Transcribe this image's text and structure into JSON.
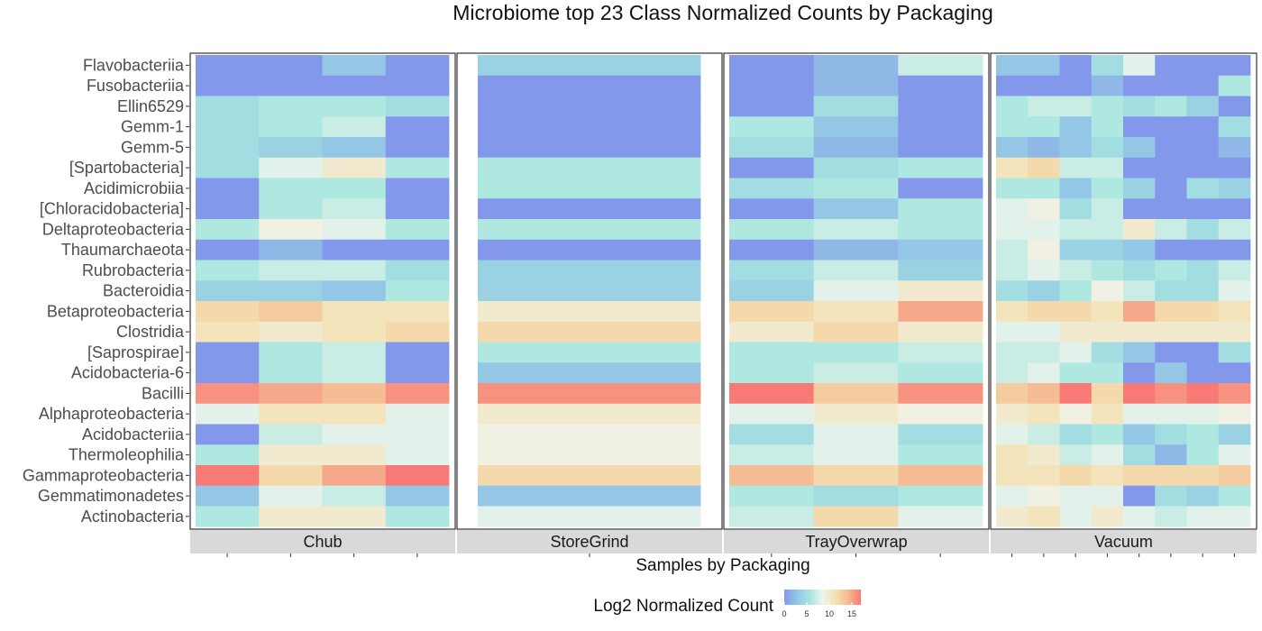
{
  "chart_data": {
    "type": "heatmap",
    "title": "Microbiome top 23 Class Normalized Counts by Packaging",
    "xlabel": "Samples by Packaging",
    "ylabel": "",
    "legend": {
      "title": "Log2 Normalized Count",
      "ticks": [
        0,
        5,
        10,
        15
      ],
      "range": [
        0,
        17
      ],
      "placement": "bottom"
    },
    "color_scale": [
      "#8498eb",
      "#93c5e6",
      "#a7e5df",
      "#eff4ec",
      "#f3e2b4",
      "#f6bb92",
      "#f77a76"
    ],
    "rows": [
      "Flavobacteriia",
      "Fusobacteriia",
      "Ellin6529",
      "Gemm-1",
      "Gemm-5",
      "[Spartobacteria]",
      "Acidimicrobiia",
      "[Chloracidobacteria]",
      "Deltaproteobacteria",
      "Thaumarchaeota",
      "Rubrobacteria",
      "Bacteroidia",
      "Betaproteobacteria",
      "Clostridia",
      "[Saprospirae]",
      "Acidobacteria-6",
      "Bacilli",
      "Alphaproteobacteria",
      "Acidobacteriia",
      "Thermoleophilia",
      "Gammaproteobacteria",
      "Gemmatimonadetes",
      "Actinobacteria"
    ],
    "panels": [
      {
        "name": "Chub",
        "values": [
          [
            0,
            0,
            3,
            0
          ],
          [
            0,
            0,
            0,
            0
          ],
          [
            5,
            6,
            6,
            5
          ],
          [
            5,
            6,
            7,
            0
          ],
          [
            5,
            4,
            3,
            0
          ],
          [
            5,
            8,
            10,
            6
          ],
          [
            0,
            6,
            6,
            0
          ],
          [
            0,
            6,
            7,
            0
          ],
          [
            6,
            9,
            8,
            6
          ],
          [
            0,
            2,
            0,
            0
          ],
          [
            6,
            7,
            7,
            5
          ],
          [
            4,
            4,
            3,
            6
          ],
          [
            12,
            13,
            11,
            11
          ],
          [
            11,
            10,
            11,
            12
          ],
          [
            0,
            6,
            7,
            0
          ],
          [
            0,
            6,
            7,
            0
          ],
          [
            16,
            15,
            14,
            16
          ],
          [
            8,
            11,
            11,
            8
          ],
          [
            0,
            7,
            8,
            8
          ],
          [
            6,
            10,
            10,
            8
          ],
          [
            17,
            12,
            15,
            17
          ],
          [
            3,
            8,
            7,
            3
          ],
          [
            6,
            10,
            10,
            6
          ]
        ]
      },
      {
        "name": "StoreGrind",
        "values": [
          [
            4
          ],
          [
            0
          ],
          [
            0
          ],
          [
            0
          ],
          [
            0
          ],
          [
            6
          ],
          [
            6
          ],
          [
            0
          ],
          [
            6
          ],
          [
            0
          ],
          [
            4
          ],
          [
            4
          ],
          [
            10
          ],
          [
            12
          ],
          [
            6
          ],
          [
            3
          ],
          [
            16
          ],
          [
            10
          ],
          [
            9
          ],
          [
            9
          ],
          [
            12
          ],
          [
            3
          ],
          [
            8
          ]
        ]
      },
      {
        "name": "TrayOverwrap",
        "values": [
          [
            0,
            2,
            7
          ],
          [
            0,
            2,
            0
          ],
          [
            0,
            5,
            0
          ],
          [
            6,
            3,
            0
          ],
          [
            5,
            2,
            0
          ],
          [
            0,
            5,
            6
          ],
          [
            5,
            6,
            0
          ],
          [
            0,
            3,
            6
          ],
          [
            6,
            7,
            6
          ],
          [
            0,
            2,
            3
          ],
          [
            5,
            7,
            4
          ],
          [
            4,
            8,
            10
          ],
          [
            12,
            11,
            15
          ],
          [
            10,
            12,
            10
          ],
          [
            6,
            6,
            7
          ],
          [
            6,
            7,
            6
          ],
          [
            17,
            13,
            16
          ],
          [
            8,
            10,
            9
          ],
          [
            5,
            8,
            5
          ],
          [
            7,
            8,
            6
          ],
          [
            14,
            12,
            14
          ],
          [
            6,
            5,
            6
          ],
          [
            7,
            12,
            8
          ]
        ]
      },
      {
        "name": "Vacuum",
        "values": [
          [
            3,
            3,
            0,
            5,
            8,
            0,
            0,
            0
          ],
          [
            0,
            0,
            0,
            2,
            0,
            0,
            0,
            6
          ],
          [
            6,
            7,
            7,
            6,
            5,
            6,
            4,
            0
          ],
          [
            6,
            6,
            3,
            6,
            0,
            0,
            0,
            5
          ],
          [
            3,
            2,
            3,
            5,
            3,
            0,
            0,
            2
          ],
          [
            11,
            12,
            7,
            7,
            0,
            0,
            0,
            0
          ],
          [
            6,
            6,
            3,
            6,
            4,
            0,
            5,
            4
          ],
          [
            8,
            9,
            5,
            7,
            0,
            0,
            0,
            0
          ],
          [
            8,
            8,
            7,
            7,
            10,
            7,
            5,
            7
          ],
          [
            7,
            9,
            4,
            4,
            3,
            0,
            0,
            0
          ],
          [
            7,
            8,
            7,
            6,
            5,
            6,
            5,
            7
          ],
          [
            5,
            4,
            6,
            9,
            7,
            5,
            5,
            8
          ],
          [
            11,
            12,
            12,
            11,
            15,
            12,
            12,
            11
          ],
          [
            8,
            8,
            10,
            10,
            10,
            10,
            10,
            10
          ],
          [
            7,
            7,
            8,
            5,
            3,
            0,
            0,
            5
          ],
          [
            7,
            8,
            6,
            6,
            0,
            3,
            0,
            0
          ],
          [
            13,
            14,
            17,
            12,
            17,
            16,
            17,
            16
          ],
          [
            10,
            11,
            9,
            11,
            8,
            8,
            8,
            9
          ],
          [
            8,
            7,
            5,
            6,
            3,
            5,
            6,
            4
          ],
          [
            11,
            10,
            7,
            8,
            5,
            2,
            6,
            8
          ],
          [
            11,
            11,
            12,
            11,
            12,
            12,
            12,
            13
          ],
          [
            8,
            9,
            8,
            8,
            0,
            5,
            4,
            6
          ],
          [
            10,
            11,
            8,
            10,
            8,
            7,
            8,
            8
          ]
        ]
      }
    ]
  }
}
